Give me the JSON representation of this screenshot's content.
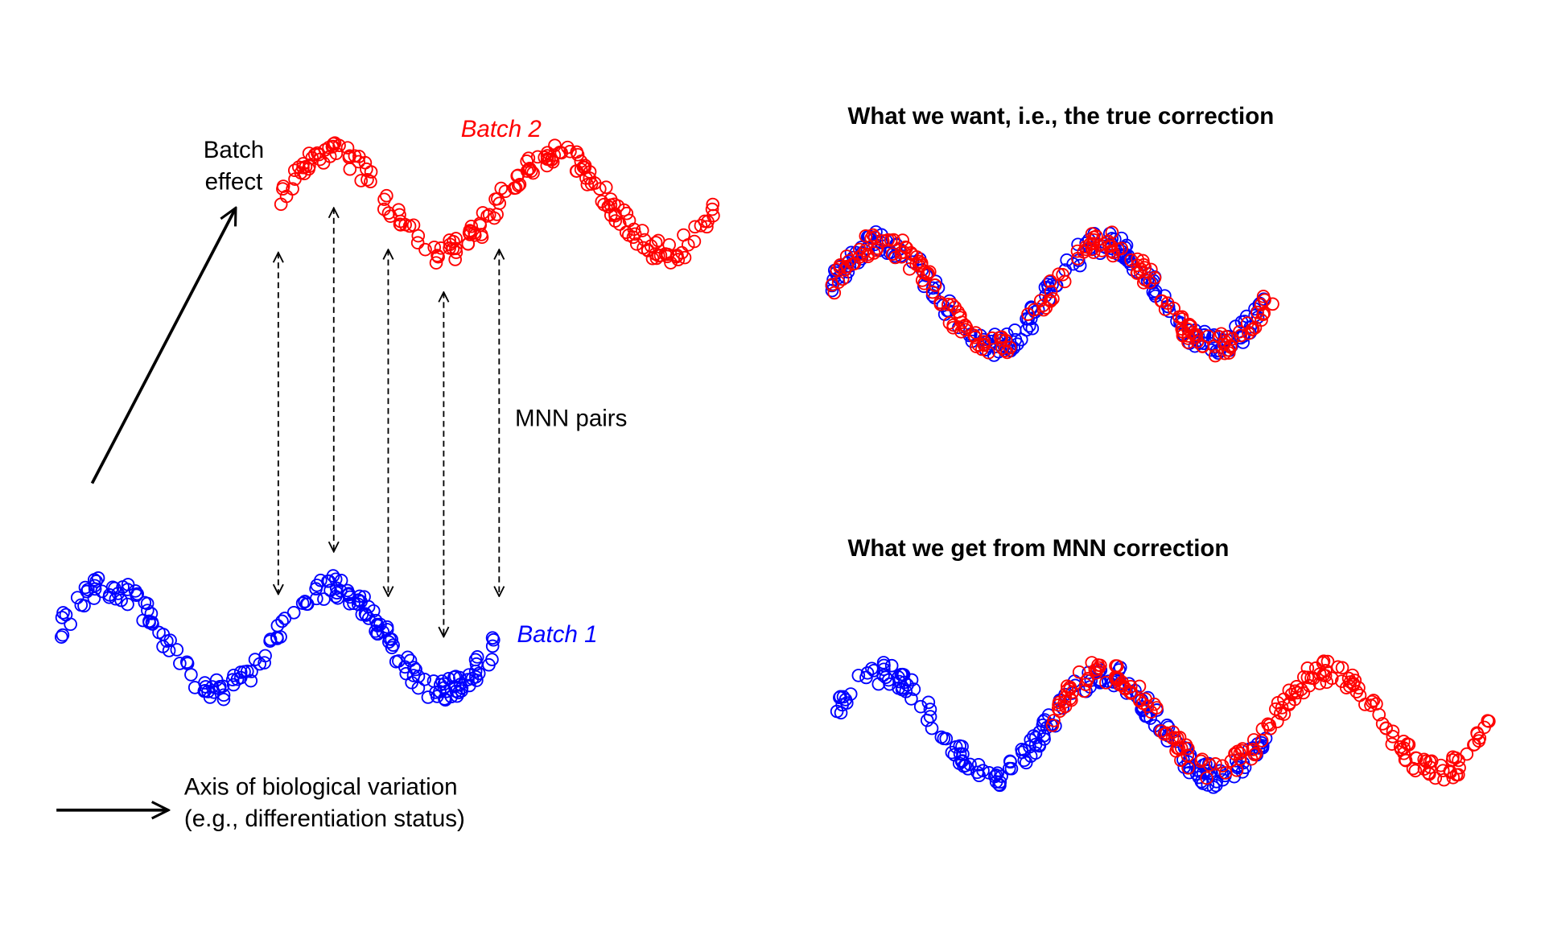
{
  "left_panel": {
    "batch_effect": [
      "Batch",
      "effect"
    ],
    "batch_2": "Batch 2",
    "batch_1": "Batch 1",
    "mnn_pairs": "MNN pairs",
    "axis_label": [
      "Axis of biological variation",
      "(e.g., differentiation status)"
    ]
  },
  "right_panel": {
    "top_title": "What we want, i.e., the true correction",
    "bottom_title": "What we get from MNN correction"
  }
}
